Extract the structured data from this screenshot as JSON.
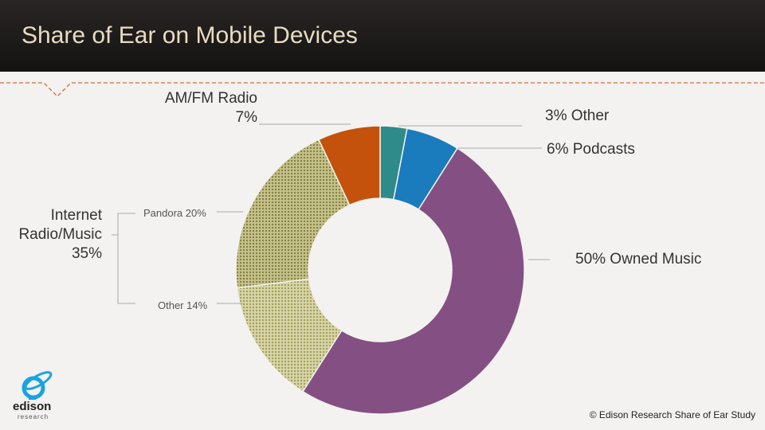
{
  "header": {
    "title": "Share of Ear on Mobile Devices"
  },
  "chart_data": {
    "type": "pie",
    "title": "Share of Ear on Mobile Devices",
    "donut": true,
    "slices": [
      {
        "name": "Other",
        "value": 3,
        "label": "3%  Other",
        "color": "#2f8b8a"
      },
      {
        "name": "Podcasts",
        "value": 6,
        "label": "6%  Podcasts",
        "color": "#1a7bbd"
      },
      {
        "name": "Owned Music",
        "value": 50,
        "label": "50% Owned Music",
        "color": "#845084"
      },
      {
        "name": "Internet Radio/Music - Other",
        "value": 14,
        "label": "Other 14%",
        "color": "#c9c88c"
      },
      {
        "name": "Internet Radio/Music - Pandora",
        "value": 20,
        "label": "Pandora 20%",
        "color": "#b9b57a"
      },
      {
        "name": "AM/FM Radio",
        "value": 7,
        "label": "AM/FM Radio 7%",
        "color": "#c4520c"
      }
    ],
    "group": {
      "label_line1": "Internet",
      "label_line2": "Radio/Music",
      "label_line3": "35%",
      "value": 35
    },
    "amfm": {
      "line1": "AM/FM Radio",
      "line2": "7%"
    }
  },
  "footer": {
    "copyright": "© Edison Research Share of Ear Study",
    "logo_text": "edison",
    "logo_sub": "research"
  },
  "colors": {
    "accent": "#d0703e",
    "logo": "#1aa3e0"
  }
}
